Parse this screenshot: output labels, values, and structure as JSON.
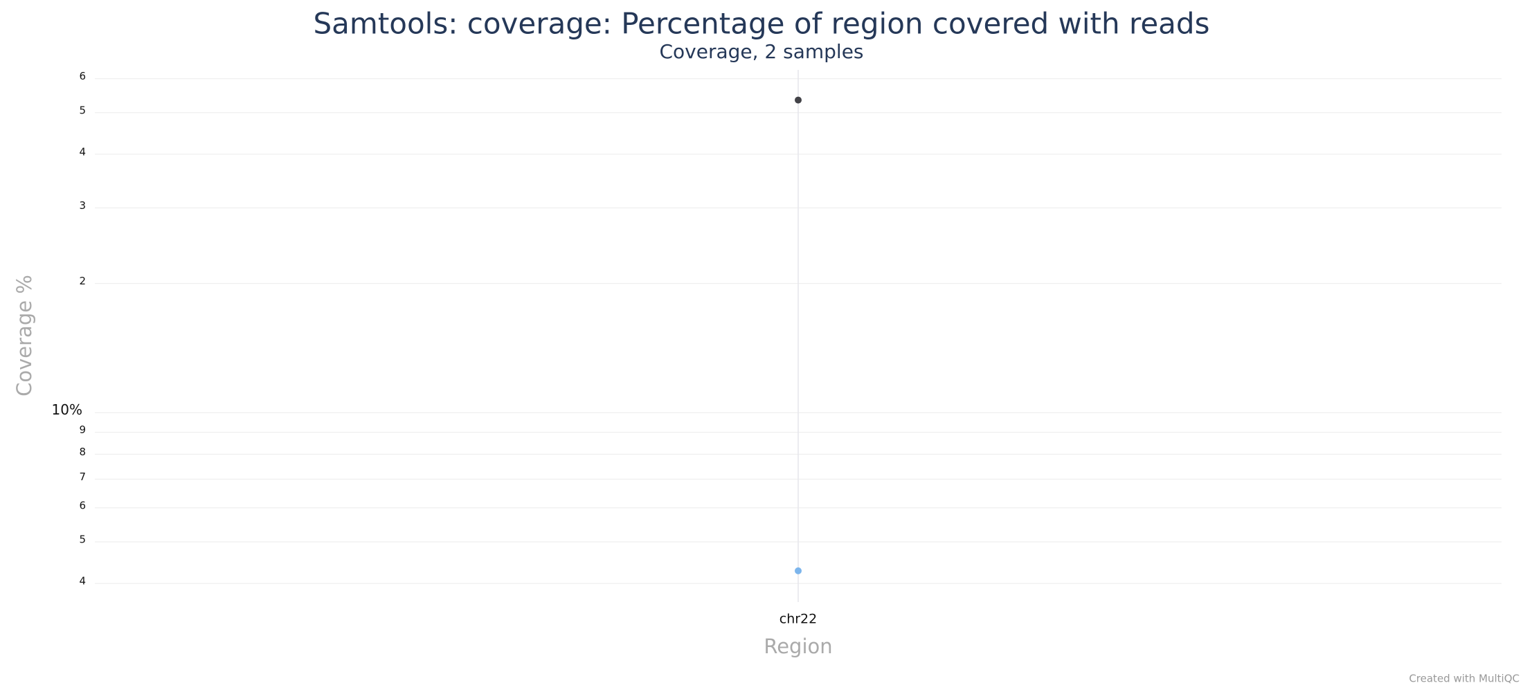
{
  "chart_data": {
    "type": "scatter",
    "title": "Samtools: coverage: Percentage of region covered with reads",
    "subtitle": "Coverage, 2 samples",
    "x_label": "Region",
    "y_label": "Coverage %",
    "categories": [
      "chr22"
    ],
    "series": [
      {
        "color": "#434348",
        "values": [
          53.5
        ]
      },
      {
        "color": "#7cb5ec",
        "values": [
          4.28
        ]
      }
    ],
    "log_y": true,
    "ylim": [
      3.62,
      62.9
    ],
    "yticks": [
      4,
      5,
      6,
      7,
      8,
      9,
      {
        "value": 10,
        "label": "10%"
      },
      {
        "value": 20,
        "label": "2"
      },
      {
        "value": 30,
        "label": "3"
      },
      {
        "value": 40,
        "label": "4"
      },
      {
        "value": 50,
        "label": "5"
      },
      {
        "value": 60,
        "label": "6"
      }
    ],
    "grid": true,
    "credit": "Created with MultiQC"
  }
}
